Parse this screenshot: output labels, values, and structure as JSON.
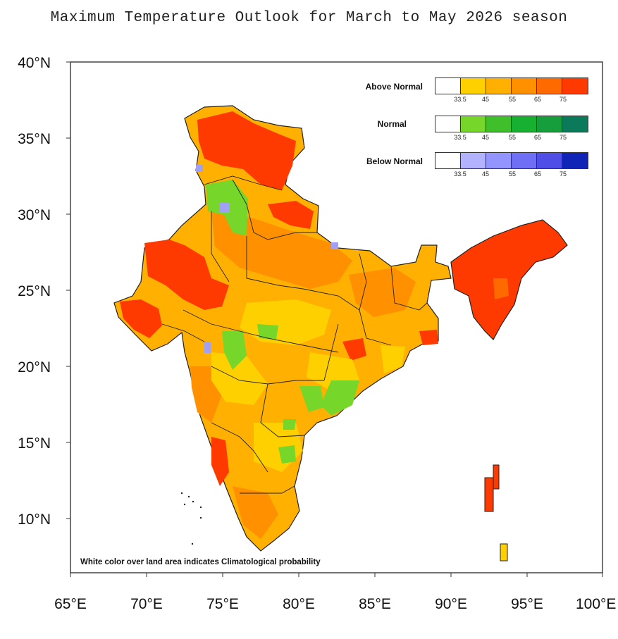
{
  "title": "Maximum Temperature Outlook for March to May 2026 season",
  "lat_labels": [
    "40°N",
    "35°N",
    "30°N",
    "25°N",
    "20°N",
    "15°N",
    "10°N"
  ],
  "lon_labels": [
    "65°E",
    "70°E",
    "75°E",
    "80°E",
    "85°E",
    "90°E",
    "95°E",
    "100°E"
  ],
  "legend": {
    "rows": [
      {
        "label": "Above Normal",
        "colors": [
          "#ffffff",
          "#ffd000",
          "#ffb000",
          "#ff9000",
          "#ff6a00",
          "#ff3a00"
        ]
      },
      {
        "label": "Normal",
        "colors": [
          "#ffffff",
          "#77d62a",
          "#3fbf2a",
          "#18b030",
          "#179e3c",
          "#0b7a5a"
        ]
      },
      {
        "label": "Below Normal",
        "colors": [
          "#ffffff",
          "#b2b2ff",
          "#9494ff",
          "#6f6ff5",
          "#4f4fe8",
          "#1024b8"
        ]
      }
    ],
    "ticks": [
      "33.5",
      "45",
      "55",
      "65",
      "75"
    ]
  },
  "note": "White color over land area indicates Climatological probability",
  "colors": {
    "above_low": "#ffd000",
    "above_mid": "#ffb000",
    "above_high": "#ff9000",
    "above_max": "#ff3a00",
    "normal": "#77d62a",
    "below": "#a0a0f5"
  }
}
